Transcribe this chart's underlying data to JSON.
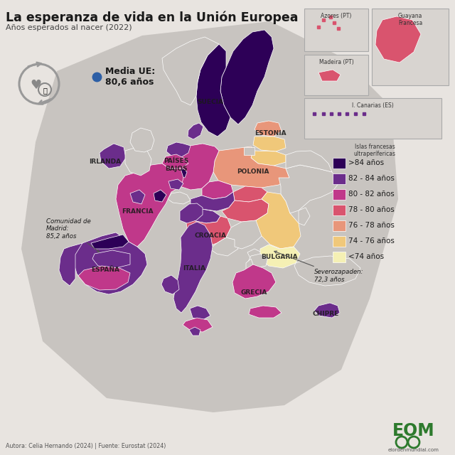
{
  "title": "La esperanza de vida en la Unión Europea",
  "subtitle": "Años esperados al nacer (2022)",
  "media_ue_label": "Media UE:\n80,6 años",
  "legend_labels": [
    ">84 años",
    "82 - 84 años",
    "80 - 82 años",
    "78 - 80 años",
    "76 - 78 años",
    "74 - 76 años",
    "<74 años"
  ],
  "legend_colors": [
    "#2d0057",
    "#6b2d8b",
    "#c0388a",
    "#d9546e",
    "#e8967a",
    "#f0c87a",
    "#f5f0b4"
  ],
  "bg_color": "#e8e4e0",
  "sea_color": "#d8d4d0",
  "annotation_madrid": "Comunidad de\nMadrid:\n85,2 años",
  "annotation_severozapaden": "Severozapaden:\n72,3 años",
  "footer": "Autora: Celia Hernando (2024) | Fuente: Eurostat (2024)",
  "colors": {
    "very_dark_purple": "#2d0057",
    "dark_purple": "#6b2d8b",
    "magenta": "#c0388a",
    "rose_red": "#d9546e",
    "salmon": "#e8967a",
    "tan": "#f0c87a",
    "pale_yellow": "#f5f0b4",
    "non_eu": "#c8c4c0",
    "border": "#ffffff"
  }
}
